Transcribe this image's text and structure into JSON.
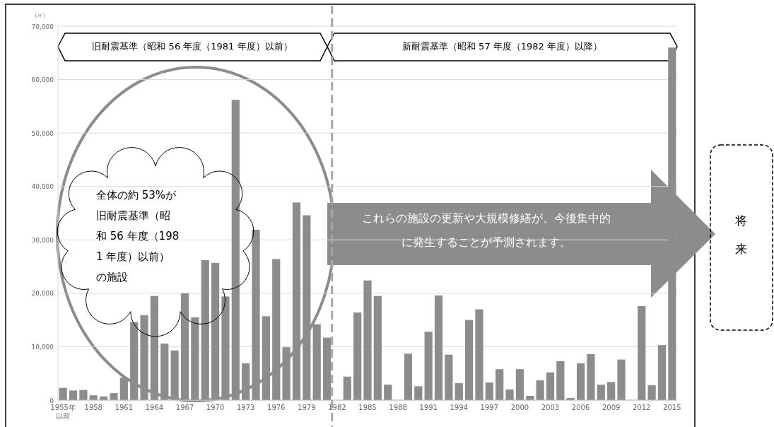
{
  "chart_data": {
    "type": "bar",
    "ylabel": "（㎡）",
    "categories": [
      "1955年以前",
      null,
      null,
      "1958",
      null,
      null,
      "1961",
      null,
      null,
      "1964",
      null,
      null,
      "1967",
      null,
      null,
      "1970",
      null,
      null,
      "1973",
      null,
      null,
      "1976",
      null,
      null,
      "1979",
      null,
      null,
      "1982",
      null,
      null,
      "1985",
      null,
      null,
      "1988",
      null,
      null,
      "1991",
      null,
      null,
      "1994",
      null,
      null,
      "1997",
      null,
      null,
      "2000",
      null,
      null,
      "2003",
      null,
      null,
      "2006",
      null,
      null,
      "2009",
      null,
      null,
      "2012",
      null,
      null,
      "2015"
    ],
    "values": [
      2300,
      1800,
      1900,
      900,
      700,
      1300,
      4200,
      14600,
      15900,
      19500,
      10600,
      9300,
      20000,
      15500,
      26200,
      25700,
      19400,
      56200,
      6900,
      31900,
      15700,
      26400,
      9900,
      37000,
      34600,
      14200,
      11700,
      null,
      4400,
      16400,
      22400,
      19500,
      2900,
      null,
      8700,
      2600,
      12800,
      19600,
      8500,
      3200,
      15000,
      17000,
      3300,
      5800,
      2000,
      5800,
      800,
      3700,
      5200,
      7300,
      400,
      6900,
      8600,
      2900,
      3400,
      7600,
      0,
      17600,
      2800,
      10300,
      66000
    ],
    "color": "#8c8c8c",
    "ylim": [
      0,
      70000
    ],
    "yticks": [
      0,
      {
        "value": 10000,
        "label": "10,000"
      },
      {
        "value": 20000,
        "label": "20,000"
      },
      {
        "value": 30000,
        "label": "30,000"
      },
      {
        "value": 40000,
        "label": "40,000"
      },
      {
        "value": 50000,
        "label": "50,000"
      },
      {
        "value": 60000,
        "label": "60,000"
      },
      {
        "value": 70000,
        "label": "70,000"
      }
    ],
    "grid": "y",
    "ref_lines": [
      {
        "axis": "x",
        "value": "1982",
        "line_style": "dashed",
        "color": "#a6a6a6"
      }
    ],
    "annotations": [
      "旧耐震基準（昭和 56 年度（1981 年度）以前）",
      "新耐震基準（昭和 57 年度（1982 年度）以降）",
      "全体の約 53%が旧耐震基準（昭和 56 年度（1981 年度）以前）の施設",
      "これらの施設の更新や大規模修繕が、今後集中的に発生することが予測されます。",
      "将来"
    ]
  }
}
